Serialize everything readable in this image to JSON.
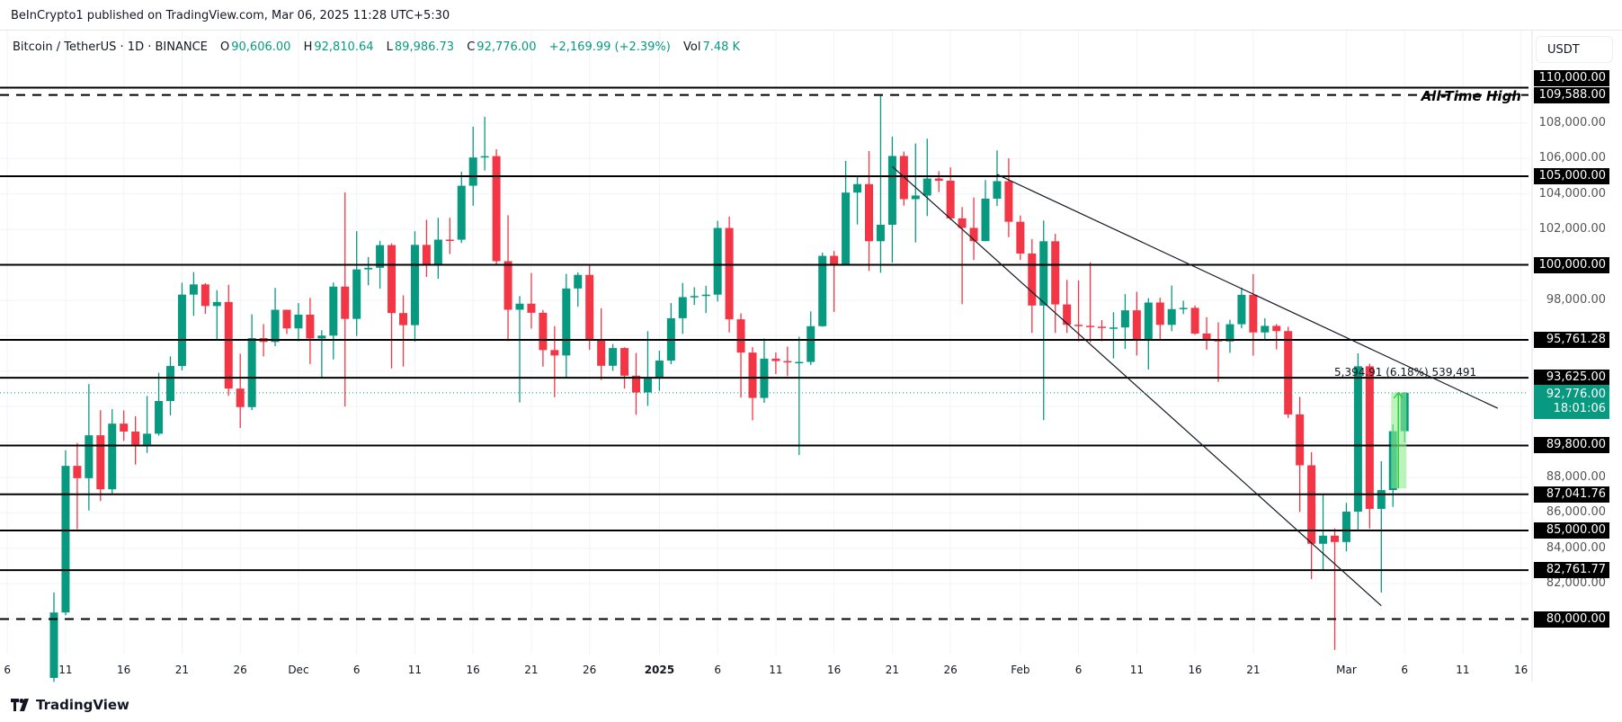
{
  "publish_line": "BeInCrypto1 published on TradingView.com, Mar 06, 2025 11:28 UTC+5:30",
  "legend": {
    "symbol": "Bitcoin / TetherUS · 1D · BINANCE",
    "o_label": "O",
    "o": "90,606.00",
    "h_label": "H",
    "h": "92,810.64",
    "l_label": "L",
    "l": "89,986.73",
    "c_label": "C",
    "c": "92,776.00",
    "change": "+2,169.99 (+2.39%)",
    "vol_label": "Vol",
    "vol": "7.48 K"
  },
  "currency": "USDT",
  "current": {
    "price": "92,776.00",
    "countdown": "18:01:06",
    "value": 92776
  },
  "ath_label": "All-Time High",
  "measure_label": "5,394.91 (6.18%) 539,491",
  "logo_text": "TradingView",
  "colors": {
    "up": "#089981",
    "down": "#f23645",
    "level": "#000000",
    "measure": "#90ee90"
  },
  "chart_data": {
    "type": "candlestick",
    "ylim": [
      79000,
      111000
    ],
    "grid": true,
    "levels": [
      {
        "price": 110000,
        "label": "110,000.00",
        "style": "solid"
      },
      {
        "price": 109588,
        "label": "109,588.00",
        "style": "dashed"
      },
      {
        "price": 105000,
        "label": "105,000.00",
        "style": "solid"
      },
      {
        "price": 100000,
        "label": "100,000.00",
        "style": "solid"
      },
      {
        "price": 95761.28,
        "label": "95,761.28",
        "style": "solid"
      },
      {
        "price": 93625,
        "label": "93,625.00",
        "style": "solid"
      },
      {
        "price": 89800,
        "label": "89,800.00",
        "style": "solid"
      },
      {
        "price": 87041.76,
        "label": "87,041.76",
        "style": "solid"
      },
      {
        "price": 85000,
        "label": "85,000.00",
        "style": "solid"
      },
      {
        "price": 82761.77,
        "label": "82,761.77",
        "style": "solid"
      },
      {
        "price": 80000,
        "label": "80,000.00",
        "style": "dashed"
      }
    ],
    "y_ticks": [
      {
        "price": 108000,
        "label": "108,000.00"
      },
      {
        "price": 106000,
        "label": "106,000.00"
      },
      {
        "price": 104000,
        "label": "104,000.00"
      },
      {
        "price": 102000,
        "label": "102,000.00"
      },
      {
        "price": 98000,
        "label": "98,000.00"
      },
      {
        "price": 88000,
        "label": "88,000.00"
      },
      {
        "price": 86000,
        "label": "86,000.00"
      },
      {
        "price": 84000,
        "label": "84,000.00"
      },
      {
        "price": 82000,
        "label": "82,000.00"
      }
    ],
    "x_ticks": [
      {
        "date": "2024-11-06",
        "label": "6"
      },
      {
        "date": "2024-11-11",
        "label": "11"
      },
      {
        "date": "2024-11-16",
        "label": "16"
      },
      {
        "date": "2024-11-21",
        "label": "21"
      },
      {
        "date": "2024-11-26",
        "label": "26"
      },
      {
        "date": "2024-12-01",
        "label": "Dec"
      },
      {
        "date": "2024-12-06",
        "label": "6"
      },
      {
        "date": "2024-12-11",
        "label": "11"
      },
      {
        "date": "2024-12-16",
        "label": "16"
      },
      {
        "date": "2024-12-21",
        "label": "21"
      },
      {
        "date": "2024-12-26",
        "label": "26"
      },
      {
        "date": "2025-01-01",
        "label": "2025",
        "bold": true
      },
      {
        "date": "2025-01-06",
        "label": "6"
      },
      {
        "date": "2025-01-11",
        "label": "11"
      },
      {
        "date": "2025-01-16",
        "label": "16"
      },
      {
        "date": "2025-01-21",
        "label": "21"
      },
      {
        "date": "2025-01-26",
        "label": "26"
      },
      {
        "date": "2025-02-01",
        "label": "Feb"
      },
      {
        "date": "2025-02-06",
        "label": "6"
      },
      {
        "date": "2025-02-11",
        "label": "11"
      },
      {
        "date": "2025-02-16",
        "label": "16"
      },
      {
        "date": "2025-02-21",
        "label": "21"
      },
      {
        "date": "2025-03-01",
        "label": "Mar"
      },
      {
        "date": "2025-03-06",
        "label": "6"
      },
      {
        "date": "2025-03-11",
        "label": "11"
      },
      {
        "date": "2025-03-16",
        "label": "16"
      }
    ],
    "trendlines": [
      {
        "from": {
          "date": "2025-01-21",
          "price": 105550
        },
        "to": {
          "date": "2025-03-04",
          "price": 80750
        }
      },
      {
        "from": {
          "date": "2025-01-30",
          "price": 105100
        },
        "to": {
          "date": "2025-03-14",
          "price": 91900
        }
      }
    ],
    "measure": {
      "date": "2025-03-05",
      "from": 87381,
      "to": 92776
    },
    "candles_columns": [
      "date",
      "open",
      "high",
      "low",
      "close"
    ],
    "candles": [
      [
        "2024-11-10",
        76677,
        81500,
        76450,
        80370
      ],
      [
        "2024-11-11",
        80370,
        89530,
        80216,
        88648
      ],
      [
        "2024-11-12",
        88648,
        89940,
        85072,
        87952
      ],
      [
        "2024-11-13",
        87952,
        93265,
        86127,
        90375
      ],
      [
        "2024-11-14",
        90375,
        91790,
        86668,
        87325
      ],
      [
        "2024-11-15",
        87325,
        91850,
        87073,
        91032
      ],
      [
        "2024-11-16",
        91032,
        91779,
        90056,
        90586
      ],
      [
        "2024-11-17",
        90586,
        91449,
        88722,
        89855
      ],
      [
        "2024-11-18",
        89855,
        92594,
        89376,
        90464
      ],
      [
        "2024-11-19",
        90464,
        93905,
        90357,
        92310
      ],
      [
        "2024-11-20",
        92310,
        94831,
        91500,
        94286
      ],
      [
        "2024-11-21",
        94286,
        98988,
        94040,
        98317
      ],
      [
        "2024-11-22",
        98317,
        99588,
        97122,
        98892
      ],
      [
        "2024-11-23",
        98892,
        98967,
        97232,
        97672
      ],
      [
        "2024-11-24",
        97672,
        98564,
        95734,
        97900
      ],
      [
        "2024-11-25",
        97900,
        98871,
        92600,
        93010
      ],
      [
        "2024-11-26",
        93010,
        94973,
        90791,
        91965
      ],
      [
        "2024-11-27",
        91965,
        97208,
        91792,
        95863
      ],
      [
        "2024-11-28",
        95863,
        96650,
        94827,
        95643
      ],
      [
        "2024-11-29",
        95643,
        98693,
        95407,
        97460
      ],
      [
        "2024-11-30",
        97460,
        97463,
        96092,
        96407
      ],
      [
        "2024-12-01",
        96407,
        97836,
        95693,
        97185
      ],
      [
        "2024-12-02",
        97185,
        98130,
        94395,
        95840
      ],
      [
        "2024-12-03",
        95840,
        96305,
        93578,
        96002
      ],
      [
        "2024-12-04",
        96002,
        99000,
        94660,
        98768
      ],
      [
        "2024-12-05",
        98768,
        104088,
        91998,
        96945
      ],
      [
        "2024-12-06",
        96945,
        101898,
        95981,
        99740
      ],
      [
        "2024-12-07",
        99740,
        100439,
        98844,
        99831
      ],
      [
        "2024-12-08",
        99831,
        101350,
        98657,
        101109
      ],
      [
        "2024-12-09",
        101109,
        101215,
        94150,
        97276
      ],
      [
        "2024-12-10",
        97276,
        98270,
        94256,
        96593
      ],
      [
        "2024-12-11",
        96593,
        101895,
        95658,
        101125
      ],
      [
        "2024-12-12",
        101125,
        102540,
        99311,
        100000
      ],
      [
        "2024-12-13",
        100000,
        102650,
        99206,
        101420
      ],
      [
        "2024-12-14",
        101420,
        102650,
        100609,
        101418
      ],
      [
        "2024-12-15",
        101418,
        105250,
        101237,
        104463
      ],
      [
        "2024-12-16",
        104463,
        107793,
        103333,
        106058
      ],
      [
        "2024-12-17",
        106058,
        108353,
        105321,
        106133
      ],
      [
        "2024-12-18",
        106133,
        106524,
        100000,
        100204
      ],
      [
        "2024-12-19",
        100204,
        102800,
        95700,
        97461
      ],
      [
        "2024-12-20",
        97461,
        98233,
        92232,
        97805
      ],
      [
        "2024-12-21",
        97805,
        99540,
        96398,
        97291
      ],
      [
        "2024-12-22",
        97291,
        97448,
        94250,
        95186
      ],
      [
        "2024-12-23",
        95186,
        96538,
        92520,
        94881
      ],
      [
        "2024-12-24",
        94881,
        99487,
        93652,
        98663
      ],
      [
        "2024-12-25",
        98663,
        99569,
        97632,
        99429
      ],
      [
        "2024-12-26",
        99429,
        99963,
        95199,
        95792
      ],
      [
        "2024-12-27",
        95792,
        97544,
        93500,
        94299
      ],
      [
        "2024-12-28",
        94299,
        95525,
        94014,
        95300
      ],
      [
        "2024-12-29",
        95300,
        95340,
        93009,
        93738
      ],
      [
        "2024-12-30",
        93738,
        95024,
        91530,
        92792
      ],
      [
        "2024-12-31",
        92792,
        96250,
        92033,
        93576
      ],
      [
        "2025-01-01",
        93576,
        95151,
        92888,
        94591
      ],
      [
        "2025-01-02",
        94591,
        97839,
        94392,
        96984
      ],
      [
        "2025-01-03",
        96984,
        98976,
        96100,
        98174
      ],
      [
        "2025-01-04",
        98174,
        98734,
        97735,
        98236
      ],
      [
        "2025-01-05",
        98236,
        98813,
        97271,
        98314
      ],
      [
        "2025-01-06",
        98314,
        102482,
        97926,
        102078
      ],
      [
        "2025-01-07",
        102078,
        102724,
        96181,
        96922
      ],
      [
        "2025-01-08",
        96922,
        97258,
        92500,
        95043
      ],
      [
        "2025-01-09",
        95043,
        95349,
        91220,
        92484
      ],
      [
        "2025-01-10",
        92484,
        95836,
        92207,
        94701
      ],
      [
        "2025-01-11",
        94701,
        95050,
        93831,
        94566
      ],
      [
        "2025-01-12",
        94566,
        95378,
        93712,
        94488
      ],
      [
        "2025-01-13",
        94488,
        95940,
        89256,
        94516
      ],
      [
        "2025-01-14",
        94516,
        97371,
        94346,
        96534
      ],
      [
        "2025-01-15",
        96534,
        100681,
        96500,
        100504
      ],
      [
        "2025-01-16",
        100504,
        100781,
        97337,
        99987
      ],
      [
        "2025-01-17",
        99987,
        105865,
        99950,
        104077
      ],
      [
        "2025-01-18",
        104077,
        104988,
        102277,
        104556
      ],
      [
        "2025-01-19",
        104556,
        106422,
        99651,
        101331
      ],
      [
        "2025-01-20",
        101331,
        109588,
        99550,
        102260
      ],
      [
        "2025-01-21",
        102260,
        107240,
        100119,
        106143
      ],
      [
        "2025-01-22",
        106143,
        106394,
        103339,
        103706
      ],
      [
        "2025-01-23",
        103706,
        106850,
        101262,
        103910
      ],
      [
        "2025-01-24",
        103910,
        107120,
        102750,
        104870
      ],
      [
        "2025-01-25",
        104870,
        105286,
        104106,
        104746
      ],
      [
        "2025-01-26",
        104746,
        105500,
        102520,
        102620
      ],
      [
        "2025-01-27",
        102620,
        103260,
        97777,
        102082
      ],
      [
        "2025-01-28",
        102082,
        103800,
        100272,
        101335
      ],
      [
        "2025-01-29",
        101335,
        104782,
        101328,
        103733
      ],
      [
        "2025-01-30",
        103733,
        106457,
        103320,
        104722
      ],
      [
        "2025-01-31",
        104722,
        106012,
        101560,
        102429
      ],
      [
        "2025-02-01",
        102429,
        102783,
        100279,
        100635
      ],
      [
        "2025-02-02",
        100635,
        101456,
        96150,
        97700
      ],
      [
        "2025-02-03",
        97700,
        102500,
        91231,
        101328
      ],
      [
        "2025-02-04",
        101328,
        101745,
        96150,
        97763
      ],
      [
        "2025-02-05",
        97763,
        99149,
        96155,
        96612
      ],
      [
        "2025-02-06",
        96612,
        99120,
        95676,
        96554
      ],
      [
        "2025-02-07",
        96554,
        100137,
        95620,
        96506
      ],
      [
        "2025-02-08",
        96506,
        96880,
        95688,
        96444
      ],
      [
        "2025-02-09",
        96444,
        97323,
        94713,
        96462
      ],
      [
        "2025-02-10",
        96462,
        98345,
        95256,
        97430
      ],
      [
        "2025-02-11",
        97430,
        98478,
        94876,
        95778
      ],
      [
        "2025-02-12",
        95778,
        98119,
        94088,
        97869
      ],
      [
        "2025-02-13",
        97869,
        98138,
        95784,
        96608
      ],
      [
        "2025-02-14",
        96608,
        98826,
        96252,
        97500
      ],
      [
        "2025-02-15",
        97500,
        97972,
        97223,
        97569
      ],
      [
        "2025-02-16",
        97569,
        97704,
        96046,
        96118
      ],
      [
        "2025-02-17",
        96118,
        97046,
        95205,
        95780
      ],
      [
        "2025-02-18",
        95780,
        96753,
        93388,
        95671
      ],
      [
        "2025-02-19",
        95671,
        96899,
        95029,
        96644
      ],
      [
        "2025-02-20",
        96644,
        98711,
        96415,
        98305
      ],
      [
        "2025-02-21",
        98305,
        99475,
        94871,
        96181
      ],
      [
        "2025-02-22",
        96181,
        96980,
        95770,
        96551
      ],
      [
        "2025-02-23",
        96551,
        96650,
        95227,
        96258
      ],
      [
        "2025-02-24",
        96258,
        96500,
        91349,
        91552
      ],
      [
        "2025-02-25",
        91552,
        92540,
        86050,
        88680
      ],
      [
        "2025-02-26",
        88680,
        89414,
        82256,
        84250
      ],
      [
        "2025-02-27",
        84250,
        87000,
        82716,
        84708
      ],
      [
        "2025-02-28",
        84708,
        85120,
        78258,
        84349
      ],
      [
        "2025-03-01",
        84349,
        86558,
        83824,
        86064
      ],
      [
        "2025-03-02",
        86064,
        95000,
        85050,
        94270
      ],
      [
        "2025-03-03",
        94270,
        94416,
        85117,
        86220
      ],
      [
        "2025-03-04",
        86220,
        88911,
        81500,
        87281
      ],
      [
        "2025-03-05",
        87281,
        91000,
        86334,
        90606
      ],
      [
        "2025-03-06",
        90606,
        92810.64,
        89986.73,
        92776
      ]
    ]
  }
}
